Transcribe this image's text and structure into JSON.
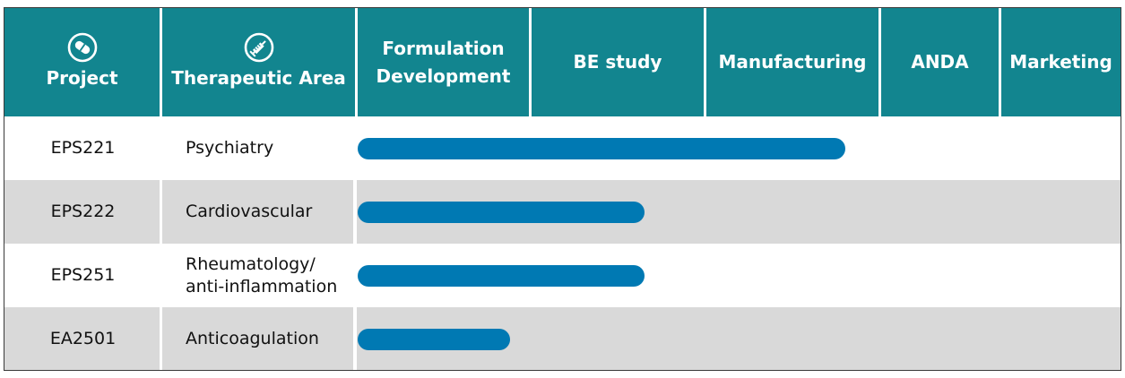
{
  "header": {
    "project_label": "Project",
    "project_icon": "pill-icon",
    "area_label": "Therapeutic Area",
    "area_icon": "syringe-icon",
    "phases": [
      "Formulation Development",
      "BE study",
      "Manufacturing",
      "ANDA",
      "Marketing"
    ]
  },
  "rows": [
    {
      "project": "EPS221",
      "area": "Psychiatry",
      "progress_stage": "Manufacturing"
    },
    {
      "project": "EPS222",
      "area": "Cardiovascular",
      "progress_stage": "BE study"
    },
    {
      "project": "EPS251",
      "area": "Rheumatology/ anti-inflammation",
      "progress_stage": "BE study"
    },
    {
      "project": "EA2501",
      "area": "Anticoagulation",
      "progress_stage": "Formulation Development"
    }
  ],
  "colors": {
    "header_bg": "#12858f",
    "bar": "#0079b3",
    "row_alt": "#d9d9d9"
  }
}
